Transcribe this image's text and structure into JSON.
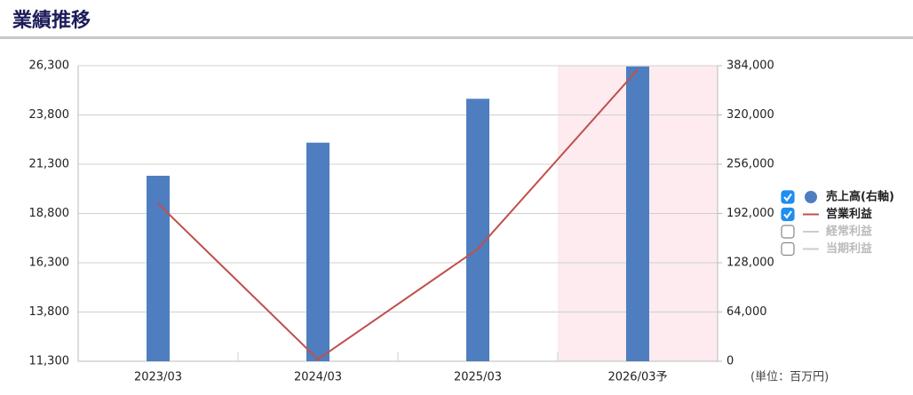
{
  "chart_data": {
    "type": "bar-line",
    "title": "業績推移",
    "unit_note": "(単位：百万円)",
    "categories": [
      "2023/03",
      "2024/03",
      "2025/03",
      "2026/03予"
    ],
    "shaded_categories": [
      3
    ],
    "shade_color": "#fdebef",
    "grid": true,
    "series": [
      {
        "name": "売上高(右軸)",
        "type": "bar",
        "axis": "y2",
        "color": "#4e7ebf",
        "visible": true,
        "values": [
          241000,
          284000,
          341000,
          383000
        ]
      },
      {
        "name": "営業利益",
        "type": "line",
        "axis": "y",
        "color": "#c0504d",
        "visible": true,
        "values": [
          19300,
          11400,
          17000,
          26100
        ]
      },
      {
        "name": "経常利益",
        "type": "line",
        "axis": "y",
        "color": "#cccccc",
        "visible": false,
        "values": [
          null,
          null,
          null,
          null
        ]
      },
      {
        "name": "当期利益",
        "type": "line",
        "axis": "y",
        "color": "#cccccc",
        "visible": false,
        "values": [
          null,
          null,
          null,
          null
        ]
      }
    ],
    "ylim": [
      11300,
      26300
    ],
    "yticks": [
      {
        "value": 11300,
        "label": "11,300"
      },
      {
        "value": 13800,
        "label": "13,800"
      },
      {
        "value": 16300,
        "label": "16,300"
      },
      {
        "value": 18800,
        "label": "18,800"
      },
      {
        "value": 21300,
        "label": "21,300"
      },
      {
        "value": 23800,
        "label": "23,800"
      },
      {
        "value": 26300,
        "label": "26,300"
      }
    ],
    "y2lim": [
      0,
      384000
    ],
    "y2ticks": [
      0,
      {
        "value": 64000,
        "label": "64,000"
      },
      {
        "value": 128000,
        "label": "128,000"
      },
      {
        "value": 192000,
        "label": "192,000"
      },
      {
        "value": 256000,
        "label": "256,000"
      },
      {
        "value": 320000,
        "label": "320,000"
      },
      {
        "value": 384000,
        "label": "384,000"
      }
    ]
  }
}
